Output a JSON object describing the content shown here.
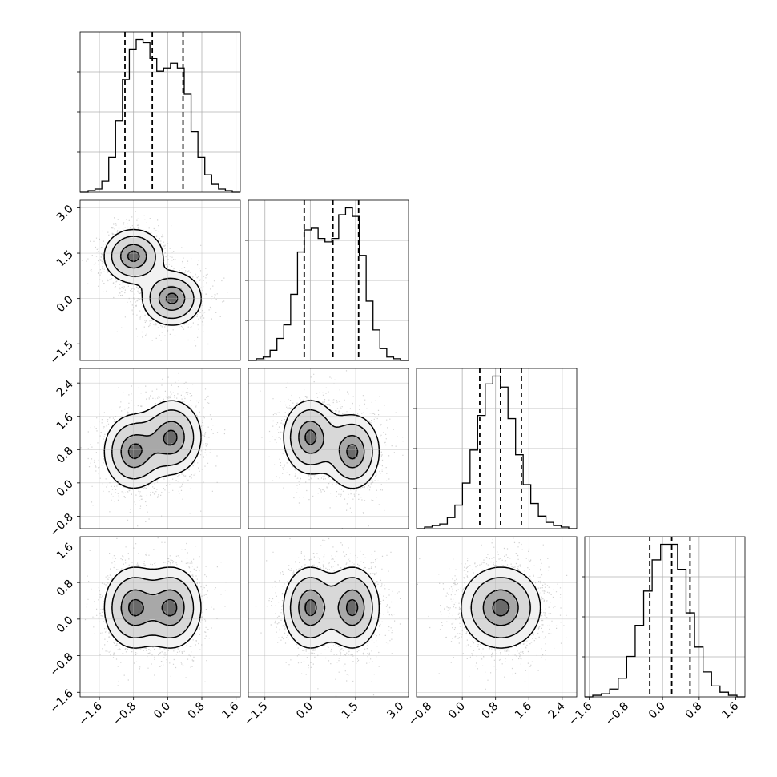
{
  "chart_data": {
    "type": "corner",
    "n_params": 4,
    "quantile_lines": [
      0.16,
      0.5,
      0.84
    ],
    "grid": true,
    "axes": [
      {
        "ticks": [
          -1.6,
          -0.8,
          0.0,
          0.8,
          1.6
        ],
        "tick_labels": [
          "−1.6",
          "−0.8",
          "0.0",
          "0.8",
          "1.6"
        ],
        "range": [
          -2.05,
          1.7
        ]
      },
      {
        "ticks": [
          -1.5,
          0.0,
          1.5,
          3.0
        ],
        "tick_labels": [
          "−1.5",
          "0.0",
          "1.5",
          "3.0"
        ],
        "range": [
          -2.05,
          3.25
        ]
      },
      {
        "ticks": [
          -0.8,
          0.0,
          0.8,
          1.6,
          2.4
        ],
        "tick_labels": [
          "−0.8",
          "0.0",
          "0.8",
          "1.6",
          "2.4"
        ],
        "range": [
          -1.1,
          2.75
        ]
      },
      {
        "ticks": [
          -1.6,
          -0.8,
          0.0,
          0.8,
          1.6
        ],
        "tick_labels": [
          "−1.6",
          "−0.8",
          "0.0",
          "0.8",
          "1.6"
        ],
        "range": [
          -1.7,
          1.8
        ]
      }
    ],
    "histograms": [
      {
        "quantiles": [
          -1.0,
          -0.36,
          0.36
        ],
        "counts": [
          1,
          2,
          7,
          22,
          45,
          71,
          90,
          96,
          94,
          84,
          76,
          78,
          81,
          78,
          62,
          38,
          22,
          11,
          5,
          2,
          1
        ]
      },
      {
        "quantiles": [
          -0.2,
          0.75,
          1.6
        ],
        "counts": [
          1,
          2,
          6,
          13,
          21,
          39,
          64,
          77,
          78,
          72,
          70,
          72,
          86,
          90,
          85,
          62,
          35,
          18,
          7,
          2,
          1
        ]
      },
      {
        "quantiles": [
          0.42,
          0.92,
          1.42
        ],
        "counts": [
          1,
          2,
          3,
          7,
          15,
          29,
          50,
          72,
          92,
          97,
          90,
          70,
          47,
          28,
          16,
          8,
          4,
          2,
          1
        ]
      },
      {
        "quantiles": [
          -0.28,
          0.2,
          0.6
        ],
        "counts": [
          1,
          2,
          5,
          12,
          26,
          46,
          68,
          88,
          98,
          98,
          82,
          54,
          32,
          16,
          7,
          3,
          1
        ]
      }
    ],
    "joint_components": [
      {
        "weight": 0.5,
        "mean": [
          -0.8,
          1.4,
          0.75,
          0.25
        ],
        "sd": [
          0.35,
          0.45,
          0.45,
          0.45
        ]
      },
      {
        "weight": 0.5,
        "mean": [
          0.1,
          0.0,
          1.1,
          0.25
        ],
        "sd": [
          0.35,
          0.45,
          0.45,
          0.45
        ]
      }
    ],
    "contour_levels": [
      0.39,
      0.86,
      1.46,
      1.96
    ]
  }
}
